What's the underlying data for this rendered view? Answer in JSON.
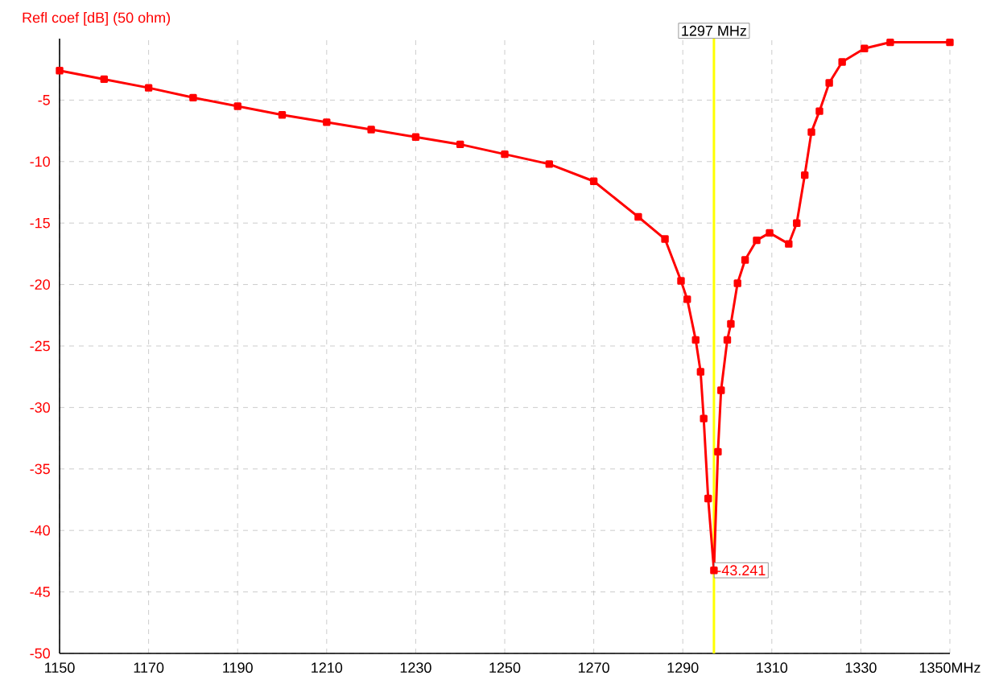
{
  "chart_data": {
    "type": "line",
    "ylabel": "Refl coef [dB] (50 ohm)",
    "x": [
      1150,
      1160,
      1170,
      1180,
      1190,
      1200,
      1210,
      1220,
      1230,
      1240,
      1250,
      1260,
      1270,
      1280,
      1286,
      1289.6,
      1291,
      1292.9,
      1294,
      1294.7,
      1295.7,
      1297,
      1297.9,
      1298.6,
      1300,
      1300.8,
      1302.3,
      1304,
      1306.6,
      1309.5,
      1313.8,
      1315.6,
      1317.4,
      1318.9,
      1320.7,
      1322.9,
      1325.8,
      1330.8,
      1336.6,
      1350
    ],
    "series": [
      {
        "color": "#ff0000",
        "values": [
          -2.6,
          -3.3,
          -4.0,
          -4.8,
          -5.5,
          -6.2,
          -6.8,
          -7.4,
          -8.0,
          -8.6,
          -9.4,
          -10.2,
          -11.6,
          -14.5,
          -16.3,
          -19.7,
          -21.2,
          -24.5,
          -27.1,
          -30.9,
          -37.4,
          -43.241,
          -33.6,
          -28.6,
          -24.5,
          -23.2,
          -19.9,
          -18.0,
          -16.4,
          -15.8,
          -16.7,
          -15.0,
          -11.1,
          -7.6,
          -5.9,
          -3.6,
          -1.9,
          -0.8,
          -0.3,
          -0.3
        ]
      }
    ],
    "xlim": [
      1150,
      1350
    ],
    "xticks": [
      1150,
      1170,
      1190,
      1210,
      1230,
      1250,
      1270,
      1290,
      1310,
      1330,
      {
        "value": 1350,
        "label": "1350MHz"
      }
    ],
    "ylim": [
      -50,
      0
    ],
    "yticks": [
      -50,
      -45,
      -40,
      -35,
      -30,
      -25,
      -20,
      -15,
      -10,
      -5
    ],
    "grid": true,
    "marker": "square",
    "line_style": "solid",
    "ref_lines": [
      {
        "axis": "x",
        "value": 1297,
        "label": "1297 MHz",
        "color": "#ffff00"
      }
    ],
    "annotations": [
      {
        "text": "-43.241",
        "x": 1297,
        "y": -43.241
      }
    ]
  }
}
